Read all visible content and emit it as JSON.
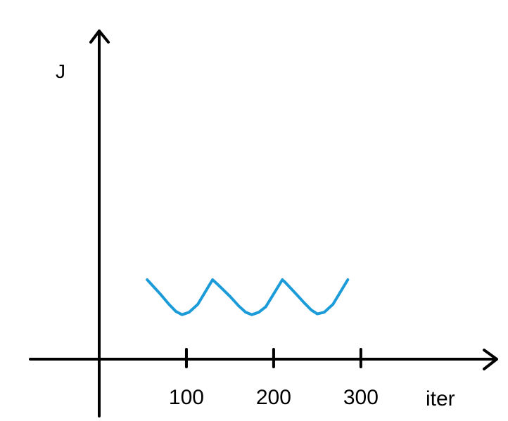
{
  "chart_data": {
    "type": "line",
    "xlabel": "iter",
    "ylabel": "J",
    "x_ticks": [
      100,
      200,
      300
    ],
    "xlim": [
      -80,
      455
    ],
    "ylim": [
      0,
      100
    ],
    "grid": false,
    "series": [
      {
        "color": "#1b9bd8",
        "x": [
          55,
          70,
          80,
          88,
          95,
          103,
          113,
          130,
          136,
          150,
          160,
          168,
          175,
          183,
          191,
          210,
          213,
          225,
          235,
          243,
          250,
          258,
          268,
          285
        ],
        "y": [
          100,
          82,
          69,
          60,
          56,
          59,
          69,
          100,
          94,
          79,
          67,
          59,
          56,
          59,
          66,
          100,
          97,
          83,
          71,
          62,
          57,
          59,
          69,
          100
        ]
      }
    ]
  }
}
